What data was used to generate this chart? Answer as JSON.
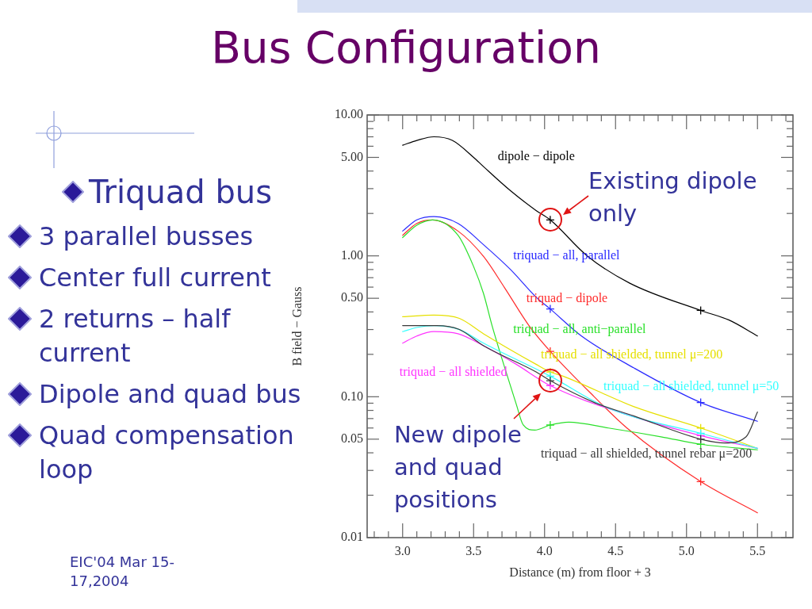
{
  "chart_data": {
    "type": "line",
    "title": "Bus Configuration",
    "xlabel": "Distance (m) from floor + 3",
    "ylabel": "B field − Gauss",
    "log": "y",
    "xlim": [
      2.75,
      5.75
    ],
    "ylim": [
      0.01,
      10
    ],
    "xticks": [
      {
        "value": 2.8,
        "label": null
      },
      {
        "value": 2.9,
        "label": null
      },
      {
        "value": 3.0,
        "label": "3.0"
      },
      {
        "value": 3.1,
        "label": null
      },
      {
        "value": 3.2,
        "label": null
      },
      {
        "value": 3.3,
        "label": null
      },
      {
        "value": 3.4,
        "label": null
      },
      {
        "value": 3.5,
        "label": "3.5"
      },
      {
        "value": 3.6,
        "label": null
      },
      {
        "value": 3.7,
        "label": null
      },
      {
        "value": 3.8,
        "label": null
      },
      {
        "value": 3.9,
        "label": null
      },
      {
        "value": 4.0,
        "label": "4.0"
      },
      {
        "value": 4.1,
        "label": null
      },
      {
        "value": 4.2,
        "label": null
      },
      {
        "value": 4.3,
        "label": null
      },
      {
        "value": 4.4,
        "label": null
      },
      {
        "value": 4.5,
        "label": "4.5"
      },
      {
        "value": 4.6,
        "label": null
      },
      {
        "value": 4.7,
        "label": null
      },
      {
        "value": 4.8,
        "label": null
      },
      {
        "value": 4.9,
        "label": null
      },
      {
        "value": 5.0,
        "label": "5.0"
      },
      {
        "value": 5.1,
        "label": null
      },
      {
        "value": 5.2,
        "label": null
      },
      {
        "value": 5.3,
        "label": null
      },
      {
        "value": 5.4,
        "label": null
      },
      {
        "value": 5.5,
        "label": "5.5"
      },
      {
        "value": 5.6,
        "label": null
      },
      {
        "value": 5.7,
        "label": null
      }
    ],
    "yticks": [
      {
        "value": 0.01,
        "label": "0.01"
      },
      {
        "value": 0.02,
        "label": null
      },
      {
        "value": 0.03,
        "label": null
      },
      {
        "value": 0.04,
        "label": null
      },
      {
        "value": 0.05,
        "label": "0.05"
      },
      {
        "value": 0.06,
        "label": null
      },
      {
        "value": 0.07,
        "label": null
      },
      {
        "value": 0.08,
        "label": null
      },
      {
        "value": 0.09,
        "label": null
      },
      {
        "value": 0.1,
        "label": "0.10"
      },
      {
        "value": 0.2,
        "label": null
      },
      {
        "value": 0.3,
        "label": null
      },
      {
        "value": 0.4,
        "label": null
      },
      {
        "value": 0.5,
        "label": "0.50"
      },
      {
        "value": 0.6,
        "label": null
      },
      {
        "value": 0.7,
        "label": null
      },
      {
        "value": 0.8,
        "label": null
      },
      {
        "value": 0.9,
        "label": null
      },
      {
        "value": 1,
        "label": "1.00"
      },
      {
        "value": 2,
        "label": null
      },
      {
        "value": 3,
        "label": null
      },
      {
        "value": 4,
        "label": null
      },
      {
        "value": 5,
        "label": "5.00"
      },
      {
        "value": 6,
        "label": null
      },
      {
        "value": 7,
        "label": null
      },
      {
        "value": 8,
        "label": null
      },
      {
        "value": 9,
        "label": null
      },
      {
        "value": 10,
        "label": "10.00"
      }
    ],
    "series": [
      {
        "name": "dipole − dipole",
        "color": "#000000",
        "x": [
          3.0,
          3.1,
          3.22,
          3.35,
          3.5,
          3.57,
          3.76,
          3.94,
          4.04,
          4.3,
          4.6,
          5.1,
          5.3,
          5.5
        ],
        "values": [
          6.1,
          6.6,
          7.0,
          6.6,
          5.0,
          4.3,
          2.9,
          2.1,
          1.8,
          1.0,
          0.64,
          0.41,
          0.35,
          0.27
        ]
      },
      {
        "name": "triquad − all, parallel",
        "color": "#2a2aff",
        "x": [
          3.0,
          3.1,
          3.22,
          3.39,
          3.57,
          3.76,
          3.94,
          4.04,
          4.26,
          4.63,
          5.1,
          5.5
        ],
        "values": [
          1.5,
          1.8,
          1.9,
          1.7,
          1.2,
          0.8,
          0.51,
          0.42,
          0.27,
          0.16,
          0.091,
          0.067
        ]
      },
      {
        "name": "triquad − dipole",
        "color": "#ff2a2a",
        "x": [
          3.0,
          3.1,
          3.21,
          3.39,
          3.57,
          3.72,
          3.89,
          4.04,
          4.35,
          4.58,
          5.1,
          5.5
        ],
        "values": [
          1.4,
          1.7,
          1.8,
          1.5,
          0.99,
          0.59,
          0.32,
          0.21,
          0.1,
          0.06,
          0.025,
          0.015
        ]
      },
      {
        "name": "triquad − all, anti−parallel",
        "color": "#2ae02a",
        "x": [
          3.0,
          3.1,
          3.21,
          3.39,
          3.5,
          3.57,
          3.63,
          3.72,
          3.8,
          3.85,
          3.93,
          4.04,
          4.17,
          4.45,
          4.82,
          5.1,
          5.5
        ],
        "values": [
          1.35,
          1.65,
          1.8,
          1.4,
          0.84,
          0.54,
          0.32,
          0.16,
          0.089,
          0.063,
          0.058,
          0.063,
          0.066,
          0.06,
          0.052,
          0.046,
          0.042
        ]
      },
      {
        "name": "triquad − all shielded, tunnel μ=200",
        "color": "#e6e000",
        "x": [
          3.0,
          3.22,
          3.4,
          3.57,
          3.94,
          4.04,
          4.13,
          4.63,
          5.1,
          5.5
        ],
        "values": [
          0.37,
          0.38,
          0.36,
          0.28,
          0.17,
          0.15,
          0.14,
          0.085,
          0.06,
          0.043
        ]
      },
      {
        "name": "triquad − all shielded",
        "color": "#ff33ff",
        "x": [
          3.0,
          3.1,
          3.22,
          3.39,
          3.57,
          3.8,
          4.04,
          4.63,
          5.1,
          5.5
        ],
        "values": [
          0.24,
          0.27,
          0.29,
          0.28,
          0.23,
          0.17,
          0.12,
          0.072,
          0.053,
          0.043
        ]
      },
      {
        "name": "triquad − all shielded, tunnel μ=50",
        "color": "#33ffff",
        "x": [
          3.0,
          3.1,
          3.22,
          3.4,
          3.57,
          4.04,
          4.45,
          5.1,
          5.5
        ],
        "values": [
          0.29,
          0.31,
          0.32,
          0.3,
          0.24,
          0.14,
          0.083,
          0.055,
          0.043
        ]
      },
      {
        "name": "triquad − all shielded, tunnel rebar μ=200",
        "color": "#3a3a3a",
        "x": [
          3.0,
          3.1,
          3.24,
          3.4,
          3.57,
          3.94,
          4.04,
          4.35,
          4.63,
          5.1,
          5.27,
          5.42,
          5.5
        ],
        "values": [
          0.32,
          0.32,
          0.32,
          0.3,
          0.23,
          0.15,
          0.13,
          0.091,
          0.073,
          0.05,
          0.047,
          0.052,
          0.078
        ]
      },
      {
        "type": "scatter",
        "marker": "cross",
        "x": [
          4.04,
          4.04,
          4.04,
          4.04,
          4.04,
          4.04,
          4.04,
          4.04,
          5.1,
          5.1,
          5.1,
          5.1,
          5.1,
          5.1,
          5.1,
          5.1
        ],
        "values": [
          1.8,
          0.42,
          0.21,
          0.063,
          0.15,
          0.12,
          0.14,
          0.13,
          0.41,
          0.091,
          0.025,
          0.046,
          0.06,
          0.053,
          0.055,
          0.05
        ],
        "colors": [
          "#000000",
          "#2a2aff",
          "#ff2a2a",
          "#2ae02a",
          "#e6e000",
          "#ff33ff",
          "#33ffff",
          "#3a3a3a",
          "#000000",
          "#2a2aff",
          "#ff2a2a",
          "#2ae02a",
          "#e6e000",
          "#ff33ff",
          "#33ffff",
          "#3a3a3a"
        ]
      }
    ],
    "annotations": [
      "Triquad bus",
      "3 parallel busses",
      "Center full current",
      "2 returns – half current",
      "Dipole and quad bus",
      "Quad compensation loop",
      "EIC'04 Mar 15-17,2004",
      {
        "text": "Existing dipole only",
        "x": 4.04,
        "y": 1.8
      },
      {
        "text": "New dipole and quad positions",
        "x": 4.04,
        "y": 0.13
      }
    ]
  }
}
